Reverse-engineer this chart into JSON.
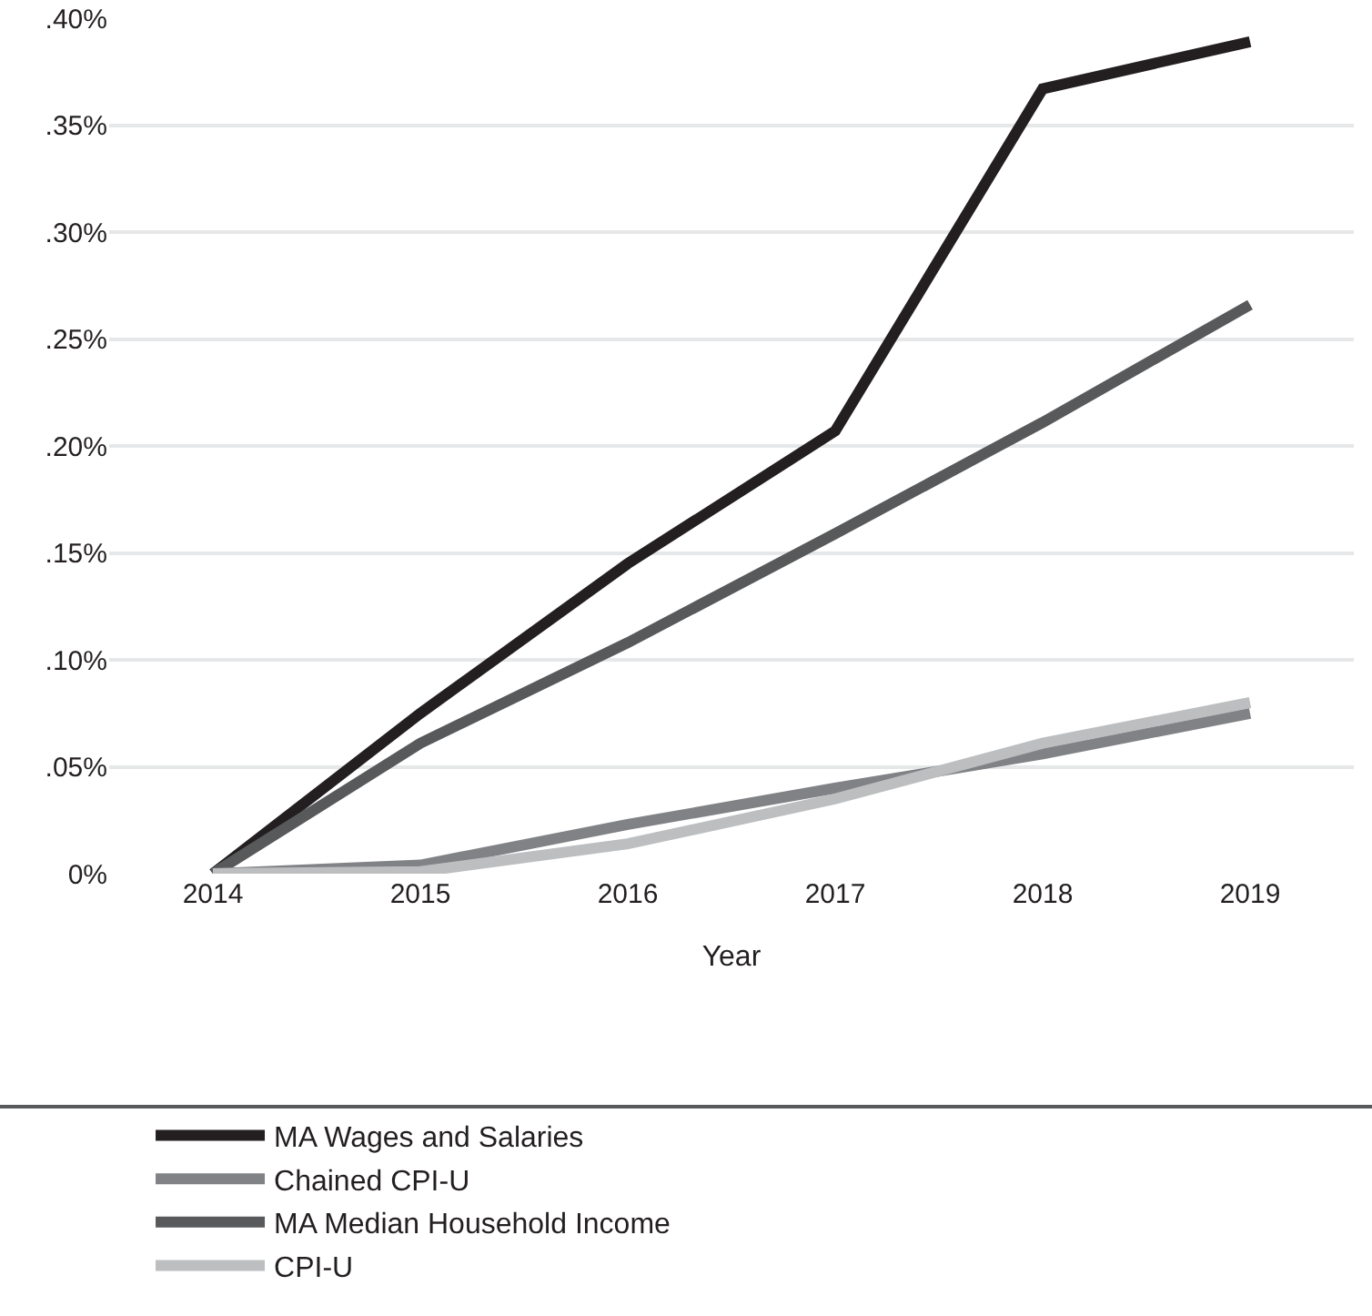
{
  "chart_data": {
    "type": "line",
    "xlabel": "Year",
    "categories": [
      "2014",
      "2015",
      "2016",
      "2017",
      "2018",
      "2019"
    ],
    "series": [
      {
        "name": "MA Wages and Salaries",
        "color": "#231f20",
        "values": [
          0,
          0.075,
          0.145,
          0.207,
          0.367,
          0.389
        ]
      },
      {
        "name": "MA Median Household Income",
        "color": "#58595b",
        "values": [
          0,
          0.061,
          0.108,
          0.159,
          0.211,
          0.266
        ]
      },
      {
        "name": "Chained CPI-U",
        "color": "#808285",
        "values": [
          0,
          0.004,
          0.023,
          0.04,
          0.056,
          0.075
        ]
      },
      {
        "name": "CPI-U",
        "color": "#bcbec0",
        "values": [
          0,
          0.001,
          0.014,
          0.035,
          0.061,
          0.08
        ]
      }
    ],
    "ylim": [
      0,
      0.4
    ],
    "yticks": [
      {
        "value": 0,
        "label": "0%"
      },
      {
        "value": 0.05,
        "label": ".05%"
      },
      {
        "value": 0.1,
        "label": ".10%"
      },
      {
        "value": 0.15,
        "label": ".15%"
      },
      {
        "value": 0.2,
        "label": ".20%"
      },
      {
        "value": 0.25,
        "label": ".25%"
      },
      {
        "value": 0.3,
        "label": ".30%"
      },
      {
        "value": 0.35,
        "label": ".35%"
      },
      {
        "value": 0.4,
        "label": ".40%"
      }
    ],
    "grid": "y",
    "legend": "bottom",
    "marker": "none",
    "line_style": "solid"
  }
}
